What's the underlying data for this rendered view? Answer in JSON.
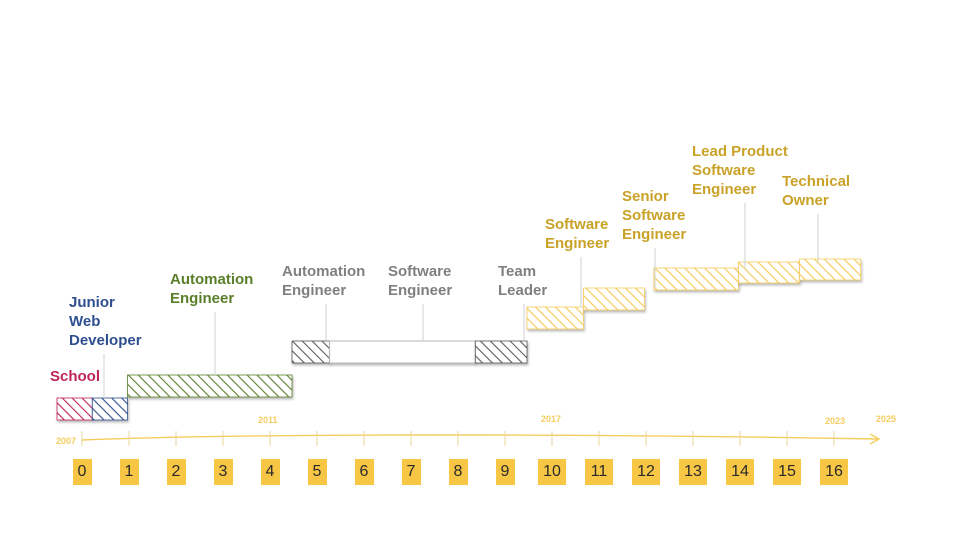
{
  "colors": {
    "school": "#c0245c",
    "junior": "#2f4f8f",
    "automation_green": "#5a7f2b",
    "gray": "#808080",
    "gold_text": "#c9a227",
    "gold_fill": "#f6cc5e",
    "tick_box": "#f6c644",
    "axis": "#f6cc5e"
  },
  "roles": [
    {
      "label": "School",
      "start": 0,
      "end": 0.75,
      "style": "school",
      "bar_level": 0
    },
    {
      "label": "Junior\nWeb\nDeveloper",
      "start": 0.75,
      "end": 1.5,
      "style": "junior",
      "bar_level": 0
    },
    {
      "label": "Automation\nEngineer",
      "start": 1.5,
      "end": 5,
      "style": "green",
      "bar_level": 1
    },
    {
      "label": "Automation\nEngineer",
      "start": 5,
      "end": 5.8,
      "style": "gray",
      "bar_level": 2
    },
    {
      "label": "Software\nEngineer",
      "start": 5.8,
      "end": 8.9,
      "style": "gray-outline",
      "bar_level": 2
    },
    {
      "label": "Team\nLeader",
      "start": 8.9,
      "end": 10,
      "style": "gray",
      "bar_level": 2
    },
    {
      "label": "Software\nEngineer",
      "start": 10,
      "end": 11.2,
      "style": "gold",
      "bar_level": 3
    },
    {
      "label": "Senior\nSoftware\nEngineer",
      "start": 11.2,
      "end": 12.5,
      "style": "gold",
      "bar_level": 4
    },
    {
      "label": "Lead Product\nSoftware\nEngineer",
      "start": 12.7,
      "end": 14.5,
      "style": "gold",
      "bar_level": 5
    },
    {
      "label": "Technical\nOwner",
      "start": 14.5,
      "end": 15.8,
      "style": "gold",
      "bar_level": 6
    },
    {
      "label": "",
      "start": 15.8,
      "end": 17.1,
      "style": "gold",
      "bar_level": 7
    }
  ],
  "year_labels": [
    {
      "label": "2007",
      "tick": 0
    },
    {
      "label": "2011",
      "tick": 4
    },
    {
      "label": "2017",
      "tick": 10
    },
    {
      "label": "2023",
      "tick": 16
    },
    {
      "label": "2025",
      "tick": 17
    }
  ],
  "ticks": [
    "0",
    "1",
    "2",
    "3",
    "4",
    "5",
    "6",
    "7",
    "8",
    "9",
    "10",
    "11",
    "12",
    "13",
    "14",
    "15",
    "16"
  ]
}
